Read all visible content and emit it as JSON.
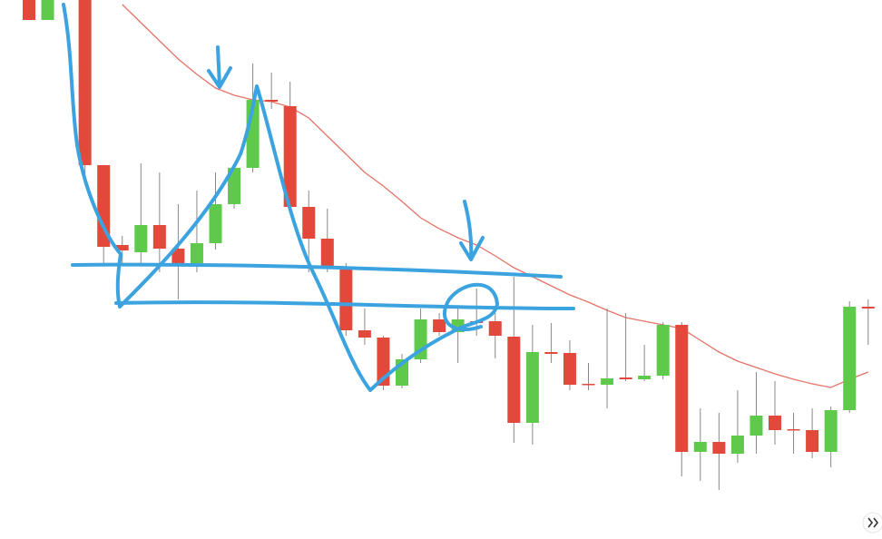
{
  "chart_data": {
    "type": "candlestick",
    "categories": [
      null,
      null,
      null,
      null,
      null,
      null,
      null,
      null,
      null,
      null,
      null,
      null,
      null,
      null,
      null,
      null,
      null,
      null,
      null,
      null,
      null,
      null,
      null,
      null,
      null,
      null,
      null,
      null,
      null,
      null,
      null,
      null,
      null,
      null,
      null,
      null,
      null,
      null,
      null,
      null,
      null,
      null,
      null,
      null,
      null,
      null
    ],
    "open": [
      594,
      572,
      null,
      594,
      412,
      324,
      316,
      346,
      320,
      304,
      326,
      369,
      409,
      484,
      477,
      366,
      331,
      298,
      230,
      222,
      169,
      198,
      242,
      228,
      240,
      240,
      223,
      128,
      206,
      205,
      171,
      170,
      178,
      176,
      180,
      236,
      96,
      107,
      94,
      114,
      136,
      121,
      120,
      96,
      142,
      256
    ],
    "high": [
      594,
      594,
      null,
      594,
      412,
      334,
      414,
      404,
      369,
      384,
      404,
      414,
      524,
      514,
      504,
      384,
      364,
      304,
      254,
      224,
      204,
      254,
      249,
      254,
      276,
      249,
      289,
      236,
      238,
      219,
      194,
      254,
      249,
      214,
      239,
      239,
      144,
      139,
      164,
      184,
      174,
      139,
      144,
      146,
      262,
      264
    ],
    "low": [
      572,
      572,
      null,
      394,
      304,
      304,
      304,
      294,
      264,
      294,
      319,
      364,
      404,
      474,
      364,
      294,
      294,
      224,
      214,
      164,
      166,
      194,
      224,
      194,
      224,
      199,
      106,
      104,
      194,
      164,
      164,
      144,
      174,
      174,
      176,
      69,
      64,
      54,
      84,
      94,
      104,
      94,
      89,
      79,
      139,
      214
    ],
    "close": [
      572,
      594,
      null,
      412,
      322,
      318,
      346,
      320,
      304,
      326,
      369,
      409,
      484,
      482,
      366,
      331,
      298,
      230,
      222,
      169,
      198,
      242,
      228,
      242,
      238,
      224,
      128,
      206,
      204,
      170,
      170,
      177,
      176,
      180,
      236,
      96,
      107,
      94,
      114,
      136,
      120,
      120,
      96,
      142,
      256,
      254
    ],
    "up_color": "#5ec94a",
    "down_color": "#e2493b",
    "moving_average": {
      "color": "#e57368",
      "values": [
        null,
        null,
        null,
        null,
        null,
        589,
        569,
        549,
        529,
        512,
        497,
        489,
        484,
        482,
        476,
        464,
        444,
        424,
        404,
        389,
        372,
        354,
        342,
        332,
        324,
        312,
        299,
        289,
        279,
        269,
        261,
        252,
        244,
        240,
        236,
        232,
        219,
        206,
        196,
        189,
        182,
        176,
        171,
        167,
        176,
        184
      ]
    },
    "ylim": [
      0,
      594
    ]
  }
}
